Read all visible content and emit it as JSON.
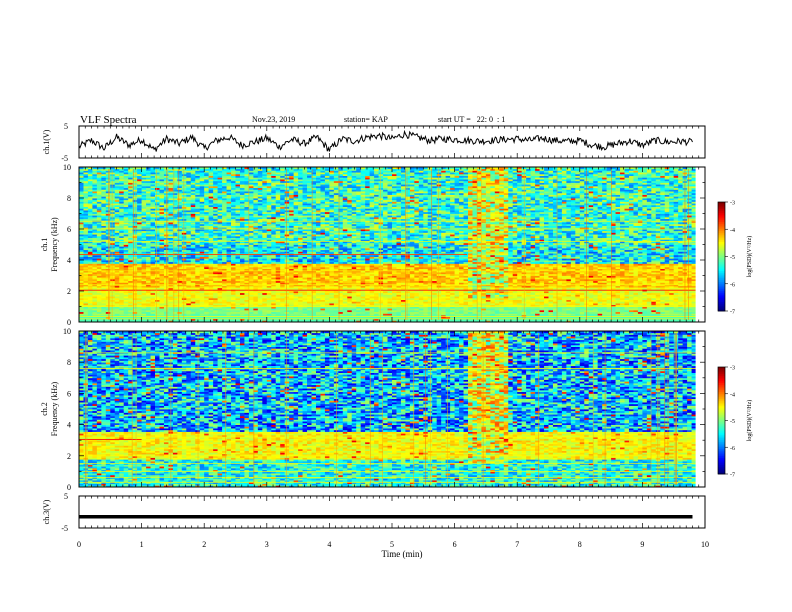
{
  "header": {
    "title": "VLF Spectra",
    "date": "Nov.23, 2019",
    "station": "station= KAP",
    "start": "start UT =   22: 0  : 1"
  },
  "chart_data": [
    {
      "type": "line",
      "panel": "ch1-waveform",
      "ylabel": "ch.1(V)",
      "ylim": [
        -5,
        5
      ],
      "yticks": [
        "5",
        "-5"
      ],
      "xlim": [
        0,
        10
      ],
      "x": [
        0,
        0.2,
        0.4,
        0.6,
        0.8,
        1.0,
        1.2,
        1.4,
        1.6,
        1.8,
        2.0,
        2.2,
        2.4,
        2.6,
        2.8,
        3.0,
        3.2,
        3.4,
        3.6,
        3.8,
        4.0,
        4.2,
        4.4,
        4.6,
        4.8,
        5.0,
        5.2,
        5.4,
        5.6,
        5.8,
        6.0,
        6.2,
        6.4,
        6.6,
        6.8,
        7.0,
        7.2,
        7.4,
        7.6,
        7.8,
        8.0,
        8.2,
        8.4,
        8.6,
        8.8,
        9.0,
        9.2,
        9.4,
        9.6,
        9.8
      ],
      "values": [
        -1.5,
        0.5,
        -2.0,
        1.5,
        -1.0,
        0.8,
        -2.5,
        1.0,
        -0.5,
        1.5,
        -2.0,
        0.5,
        1.5,
        -1.0,
        0.0,
        1.2,
        -1.5,
        0.8,
        -0.5,
        1.5,
        -2.5,
        1.0,
        0.3,
        1.5,
        2.0,
        1.0,
        2.5,
        1.5,
        0.5,
        1.0,
        0.8,
        0.5,
        0.3,
        0.5,
        0.8,
        1.0,
        0.5,
        1.2,
        0.5,
        0.2,
        0.5,
        -1.0,
        -1.5,
        -0.5,
        0.3,
        -1.0,
        0.5,
        0.0,
        0.2,
        0.0
      ]
    },
    {
      "type": "heatmap",
      "panel": "ch1-spectrogram",
      "ylabel": "ch.1\nFrequency (kHz)",
      "ylim": [
        0,
        10
      ],
      "yticks": [
        "0",
        "2",
        "4",
        "6",
        "8",
        "10"
      ],
      "xlim": [
        0,
        10
      ],
      "colorbar": {
        "label": "log(PSD)(V²/Hz)",
        "range": [
          -7,
          -3
        ],
        "ticks": [
          "-3",
          "-4",
          "-5",
          "-6",
          "-7"
        ]
      }
    },
    {
      "type": "heatmap",
      "panel": "ch2-spectrogram",
      "ylabel": "ch.2\nFrequency (kHz)",
      "ylim": [
        0,
        10
      ],
      "yticks": [
        "0",
        "2",
        "4",
        "6",
        "8",
        "10"
      ],
      "xlim": [
        0,
        10
      ],
      "colorbar": {
        "label": "log(PSD)(V²/Hz)",
        "range": [
          -7,
          -3
        ],
        "ticks": [
          "-3",
          "-4",
          "-5",
          "-6",
          "-7"
        ]
      }
    },
    {
      "type": "line",
      "panel": "ch3-waveform",
      "ylabel": "ch.3(V)",
      "ylim": [
        -5,
        5
      ],
      "yticks": [
        "5",
        "-5"
      ],
      "xlim": [
        0,
        9.8
      ],
      "x": [
        0,
        9.8
      ],
      "values": [
        -1.5,
        -1.5
      ],
      "xlabel": "Time (min)",
      "xticks": [
        "0",
        "1",
        "2",
        "3",
        "4",
        "5",
        "6",
        "7",
        "8",
        "9",
        "10"
      ]
    }
  ]
}
